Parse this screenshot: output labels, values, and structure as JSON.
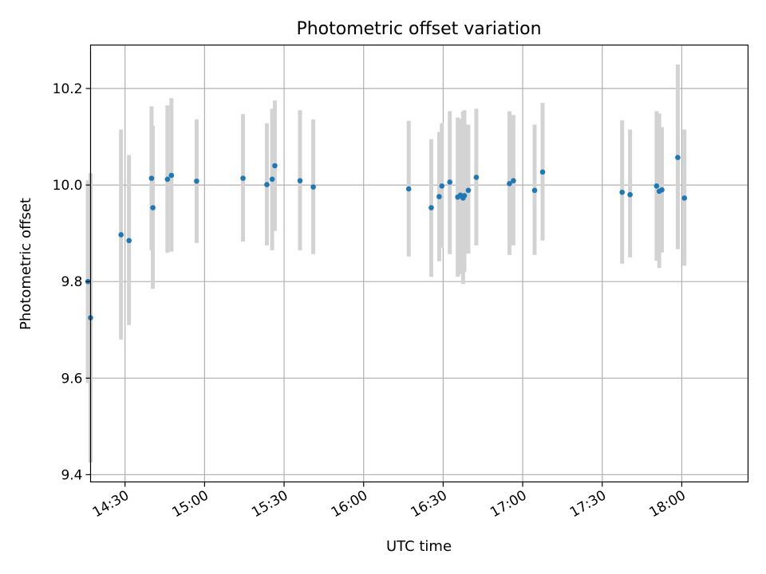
{
  "chart_data": {
    "type": "scatter",
    "title": "Photometric offset variation",
    "xlabel": "UTC time",
    "ylabel": "Photometric offset",
    "grid": true,
    "xlim": [
      "14:17",
      "18:25"
    ],
    "ylim": [
      9.385,
      10.29
    ],
    "xticks": [
      "14:30",
      "15:00",
      "15:30",
      "16:00",
      "16:30",
      "17:00",
      "17:30",
      "18:00"
    ],
    "yticks": [
      9.4,
      9.6,
      9.8,
      10.0,
      10.2
    ],
    "marker_color": "#1f77b4",
    "errorbar_color": "#d3d3d3",
    "series": [
      {
        "points": [
          {
            "x": "14:16:00",
            "y": 9.8,
            "lo": 9.59,
            "hi": 10.01
          },
          {
            "x": "14:17:00",
            "y": 9.725,
            "lo": 9.425,
            "hi": 10.025
          },
          {
            "x": "14:28:30",
            "y": 9.897,
            "lo": 9.68,
            "hi": 10.115
          },
          {
            "x": "14:31:30",
            "y": 9.885,
            "lo": 9.71,
            "hi": 10.062
          },
          {
            "x": "14:40:00",
            "y": 10.014,
            "lo": 9.865,
            "hi": 10.163
          },
          {
            "x": "14:40:30",
            "y": 9.953,
            "lo": 9.785,
            "hi": 10.123
          },
          {
            "x": "14:46:00",
            "y": 10.012,
            "lo": 9.86,
            "hi": 10.165
          },
          {
            "x": "14:47:30",
            "y": 10.02,
            "lo": 9.862,
            "hi": 10.18
          },
          {
            "x": "14:57:00",
            "y": 10.008,
            "lo": 9.88,
            "hi": 10.136
          },
          {
            "x": "15:14:30",
            "y": 10.014,
            "lo": 9.883,
            "hi": 10.147
          },
          {
            "x": "15:23:30",
            "y": 10.001,
            "lo": 9.875,
            "hi": 10.128
          },
          {
            "x": "15:25:30",
            "y": 10.012,
            "lo": 9.865,
            "hi": 10.158
          },
          {
            "x": "15:26:30",
            "y": 10.04,
            "lo": 9.905,
            "hi": 10.175
          },
          {
            "x": "15:36:00",
            "y": 10.009,
            "lo": 9.865,
            "hi": 10.155
          },
          {
            "x": "15:41:00",
            "y": 9.996,
            "lo": 9.857,
            "hi": 10.136
          },
          {
            "x": "16:17:00",
            "y": 9.992,
            "lo": 9.852,
            "hi": 10.133
          },
          {
            "x": "16:25:30",
            "y": 9.953,
            "lo": 9.81,
            "hi": 10.095
          },
          {
            "x": "16:28:30",
            "y": 9.976,
            "lo": 9.842,
            "hi": 10.11
          },
          {
            "x": "16:29:30",
            "y": 9.998,
            "lo": 9.87,
            "hi": 10.128
          },
          {
            "x": "16:32:30",
            "y": 10.006,
            "lo": 9.857,
            "hi": 10.153
          },
          {
            "x": "16:35:30",
            "y": 9.975,
            "lo": 9.81,
            "hi": 10.14
          },
          {
            "x": "16:36:30",
            "y": 9.979,
            "lo": 9.815,
            "hi": 10.137
          },
          {
            "x": "16:37:30",
            "y": 9.973,
            "lo": 9.795,
            "hi": 10.152
          },
          {
            "x": "16:38:00",
            "y": 9.978,
            "lo": 9.82,
            "hi": 10.155
          },
          {
            "x": "16:39:30",
            "y": 9.989,
            "lo": 9.858,
            "hi": 10.125
          },
          {
            "x": "16:42:30",
            "y": 10.016,
            "lo": 9.875,
            "hi": 10.158
          },
          {
            "x": "16:55:00",
            "y": 10.003,
            "lo": 9.855,
            "hi": 10.153
          },
          {
            "x": "16:56:30",
            "y": 10.009,
            "lo": 9.875,
            "hi": 10.145
          },
          {
            "x": "17:04:30",
            "y": 9.989,
            "lo": 9.855,
            "hi": 10.125
          },
          {
            "x": "17:07:30",
            "y": 10.027,
            "lo": 9.885,
            "hi": 10.17
          },
          {
            "x": "17:37:30",
            "y": 9.985,
            "lo": 9.837,
            "hi": 10.134
          },
          {
            "x": "17:40:30",
            "y": 9.98,
            "lo": 9.85,
            "hi": 10.115
          },
          {
            "x": "17:50:30",
            "y": 9.998,
            "lo": 9.843,
            "hi": 10.153
          },
          {
            "x": "17:51:30",
            "y": 9.987,
            "lo": 9.828,
            "hi": 10.148
          },
          {
            "x": "17:52:30",
            "y": 9.99,
            "lo": 9.86,
            "hi": 10.12
          },
          {
            "x": "17:58:30",
            "y": 10.057,
            "lo": 9.867,
            "hi": 10.25
          },
          {
            "x": "18:01:00",
            "y": 9.973,
            "lo": 9.833,
            "hi": 10.115
          }
        ]
      }
    ]
  }
}
